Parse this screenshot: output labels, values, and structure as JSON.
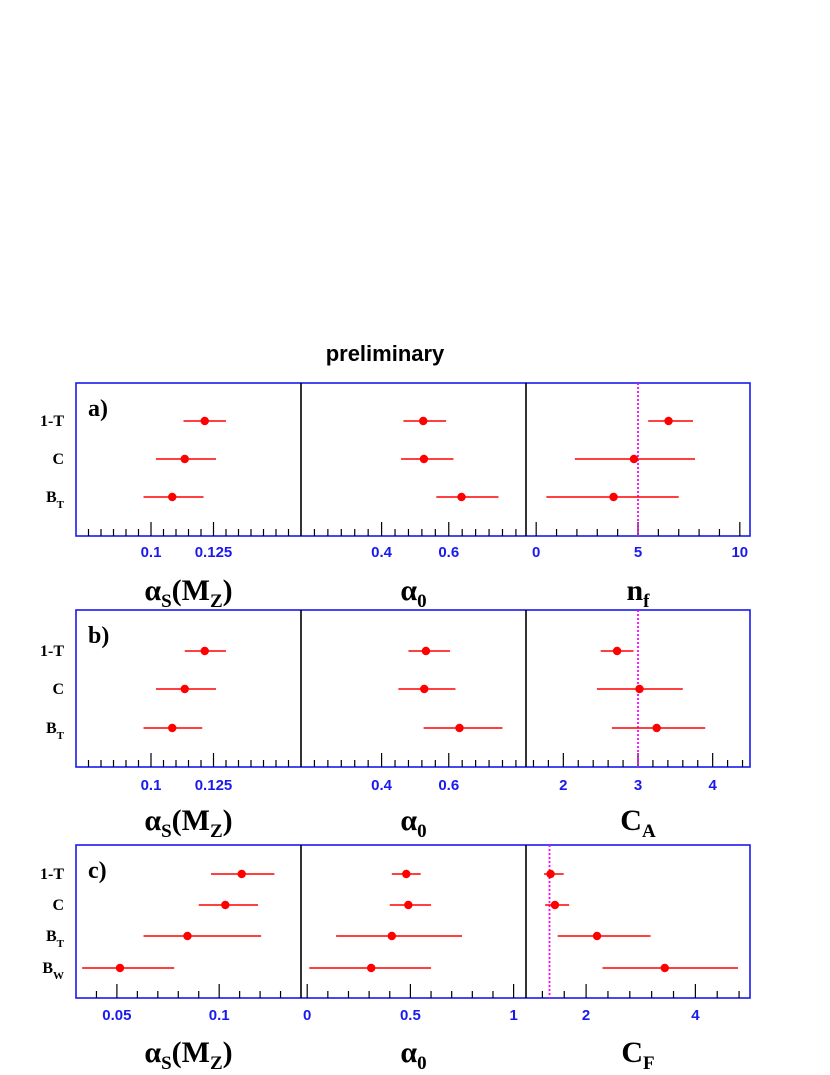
{
  "title": "preliminary",
  "colors": {
    "frame": "#1a1aee",
    "point": "#ff0000",
    "divider": "#000000",
    "reference_line": "#ff00ff",
    "tick_label": "#1a1aee"
  },
  "chart_data": [
    {
      "type": "scatter",
      "panel_label": "a)",
      "rows": [
        "1-T",
        "C",
        "B_T"
      ],
      "subplots": [
        {
          "xlabel": "α_S(M_Z)",
          "xlim": [
            0.07,
            0.16
          ],
          "ticks": [
            0.1,
            0.125
          ],
          "tick_labels": [
            "0.1",
            "0.125"
          ],
          "points": [
            {
              "row": "1-T",
              "x": 0.1215,
              "err_low": 0.0085,
              "err_high": 0.0085
            },
            {
              "row": "C",
              "x": 0.1135,
              "err_low": 0.0115,
              "err_high": 0.0125
            },
            {
              "row": "B_T",
              "x": 0.1085,
              "err_low": 0.0115,
              "err_high": 0.0125
            }
          ]
        },
        {
          "xlabel": "α_0",
          "xlim": [
            0.16,
            0.83
          ],
          "ticks": [
            0.4,
            0.6
          ],
          "tick_labels": [
            "0.4",
            "0.6"
          ],
          "points": [
            {
              "row": "1-T",
              "x": 0.524,
              "err_low": 0.059,
              "err_high": 0.068
            },
            {
              "row": "C",
              "x": 0.526,
              "err_low": 0.068,
              "err_high": 0.088
            },
            {
              "row": "B_T",
              "x": 0.638,
              "err_low": 0.075,
              "err_high": 0.11
            }
          ]
        },
        {
          "xlabel": "n_f",
          "xlim": [
            -0.5,
            10.5
          ],
          "ticks": [
            0,
            5,
            10
          ],
          "tick_labels": [
            "0",
            "5",
            "10"
          ],
          "reference_x": 5,
          "points": [
            {
              "row": "1-T",
              "x": 6.5,
              "err_low": 1.0,
              "err_high": 1.2
            },
            {
              "row": "C",
              "x": 4.8,
              "err_low": 2.9,
              "err_high": 3.0
            },
            {
              "row": "B_T",
              "x": 3.8,
              "err_low": 3.3,
              "err_high": 3.2
            }
          ]
        }
      ]
    },
    {
      "type": "scatter",
      "panel_label": "b)",
      "rows": [
        "1-T",
        "C",
        "B_T"
      ],
      "subplots": [
        {
          "xlabel": "α_S(M_Z)",
          "xlim": [
            0.07,
            0.16
          ],
          "ticks": [
            0.1,
            0.125
          ],
          "tick_labels": [
            "0.1",
            "0.125"
          ],
          "points": [
            {
              "row": "1-T",
              "x": 0.1215,
              "err_low": 0.008,
              "err_high": 0.0085
            },
            {
              "row": "C",
              "x": 0.1135,
              "err_low": 0.0115,
              "err_high": 0.0125
            },
            {
              "row": "B_T",
              "x": 0.1085,
              "err_low": 0.0115,
              "err_high": 0.012
            }
          ]
        },
        {
          "xlabel": "α_0",
          "xlim": [
            0.16,
            0.83
          ],
          "ticks": [
            0.4,
            0.6
          ],
          "tick_labels": [
            "0.4",
            "0.6"
          ],
          "points": [
            {
              "row": "1-T",
              "x": 0.532,
              "err_low": 0.052,
              "err_high": 0.072
            },
            {
              "row": "C",
              "x": 0.527,
              "err_low": 0.077,
              "err_high": 0.093
            },
            {
              "row": "B_T",
              "x": 0.632,
              "err_low": 0.107,
              "err_high": 0.128
            }
          ]
        },
        {
          "xlabel": "C_A",
          "xlim": [
            1.5,
            4.5
          ],
          "ticks": [
            2,
            3,
            4
          ],
          "tick_labels": [
            "2",
            "3",
            "4"
          ],
          "reference_x": 3,
          "points": [
            {
              "row": "1-T",
              "x": 2.72,
              "err_low": 0.22,
              "err_high": 0.22
            },
            {
              "row": "C",
              "x": 3.02,
              "err_low": 0.57,
              "err_high": 0.58
            },
            {
              "row": "B_T",
              "x": 3.25,
              "err_low": 0.6,
              "err_high": 0.65
            }
          ]
        }
      ]
    },
    {
      "type": "scatter",
      "panel_label": "c)",
      "rows": [
        "1-T",
        "C",
        "B_T",
        "B_W"
      ],
      "subplots": [
        {
          "xlabel": "α_S(M_Z)",
          "xlim": [
            0.03,
            0.14
          ],
          "ticks": [
            0.05,
            0.1
          ],
          "tick_labels": [
            "0.05",
            "0.1"
          ],
          "points": [
            {
              "row": "1-T",
              "x": 0.111,
              "err_low": 0.015,
              "err_high": 0.016
            },
            {
              "row": "C",
              "x": 0.103,
              "err_low": 0.013,
              "err_high": 0.016
            },
            {
              "row": "B_T",
              "x": 0.0845,
              "err_low": 0.0215,
              "err_high": 0.036
            },
            {
              "row": "B_W",
              "x": 0.0515,
              "err_low": 0.0185,
              "err_high": 0.0265
            }
          ]
        },
        {
          "xlabel": "α_0",
          "xlim": [
            -0.03,
            1.06
          ],
          "ticks": [
            0,
            0.5,
            1
          ],
          "tick_labels": [
            "0",
            "0.5",
            "1"
          ],
          "points": [
            {
              "row": "1-T",
              "x": 0.48,
              "err_low": 0.07,
              "err_high": 0.07
            },
            {
              "row": "C",
              "x": 0.49,
              "err_low": 0.09,
              "err_high": 0.11
            },
            {
              "row": "B_T",
              "x": 0.41,
              "err_low": 0.27,
              "err_high": 0.34
            },
            {
              "row": "B_W",
              "x": 0.31,
              "err_low": 0.3,
              "err_high": 0.29
            }
          ]
        },
        {
          "xlabel": "C_F",
          "xlim": [
            0.9,
            5.0
          ],
          "ticks": [
            2,
            4
          ],
          "tick_labels": [
            "2",
            "4"
          ],
          "reference_x": 1.33,
          "points": [
            {
              "row": "1-T",
              "x": 1.35,
              "err_low": 0.12,
              "err_high": 0.24
            },
            {
              "row": "C",
              "x": 1.43,
              "err_low": 0.18,
              "err_high": 0.26
            },
            {
              "row": "B_T",
              "x": 2.2,
              "err_low": 0.72,
              "err_high": 0.98
            },
            {
              "row": "B_W",
              "x": 3.44,
              "err_low": 1.14,
              "err_high": 1.34
            }
          ]
        }
      ]
    }
  ]
}
